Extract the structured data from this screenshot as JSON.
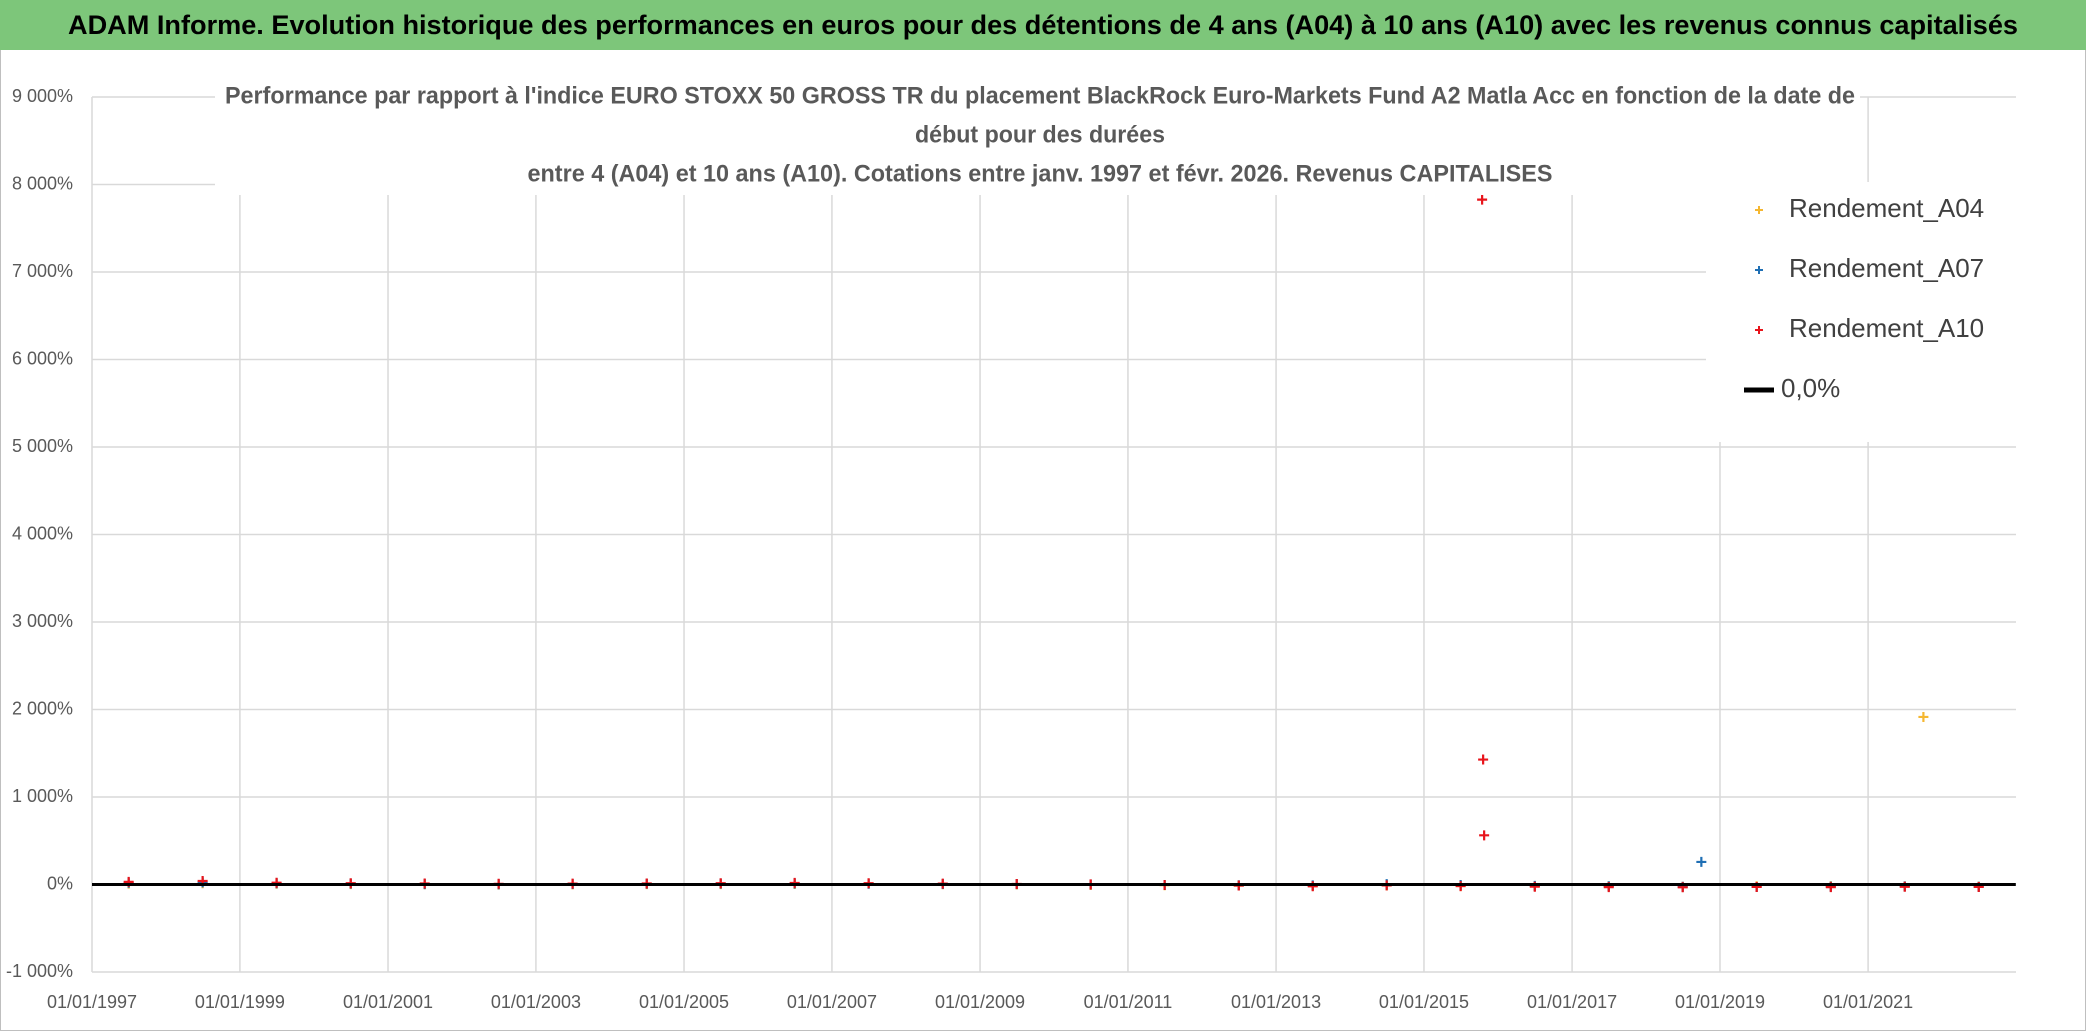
{
  "header": {
    "title": "ADAM Informe. Evolution historique des performances en euros pour des détentions de 4 ans (A04) à 10 ans (A10) avec les revenus connus capitalisés"
  },
  "chart_data": {
    "type": "scatter",
    "title": [
      "Performance par rapport à l'indice EURO STOXX 50 GROSS TR  du placement BlackRock Euro-Markets Fund A2 Matla Acc en fonction de la date de",
      "début pour des durées",
      "entre 4 (A04) et 10 ans (A10). Cotations entre janv. 1997 et févr. 2026. Revenus CAPITALISES"
    ],
    "xlim": [
      "1997-01-01",
      "2023-01-01"
    ],
    "xticks": [
      {
        "value": "1997-01-01",
        "label": "01/01/1997"
      },
      {
        "value": "1999-01-01",
        "label": "01/01/1999"
      },
      {
        "value": "2001-01-01",
        "label": "01/01/2001"
      },
      {
        "value": "2003-01-01",
        "label": "01/01/2003"
      },
      {
        "value": "2005-01-01",
        "label": "01/01/2005"
      },
      {
        "value": "2007-01-01",
        "label": "01/01/2007"
      },
      {
        "value": "2009-01-01",
        "label": "01/01/2009"
      },
      {
        "value": "2011-01-01",
        "label": "01/01/2011"
      },
      {
        "value": "2013-01-01",
        "label": "01/01/2013"
      },
      {
        "value": "2015-01-01",
        "label": "01/01/2015"
      },
      {
        "value": "2017-01-01",
        "label": "01/01/2017"
      },
      {
        "value": "2019-01-01",
        "label": "01/01/2019"
      },
      {
        "value": "2021-01-01",
        "label": "01/01/2021"
      }
    ],
    "ylim": [
      -1000,
      9000
    ],
    "yticks": [
      {
        "value": -1000,
        "label": "-1 000%"
      },
      {
        "value": 0,
        "label": "0%"
      },
      {
        "value": 1000,
        "label": "1 000%"
      },
      {
        "value": 2000,
        "label": "2 000%"
      },
      {
        "value": 3000,
        "label": "3 000%"
      },
      {
        "value": 4000,
        "label": "4 000%"
      },
      {
        "value": 5000,
        "label": "5 000%"
      },
      {
        "value": 6000,
        "label": "6 000%"
      },
      {
        "value": 7000,
        "label": "7 000%"
      },
      {
        "value": 8000,
        "label": "8 000%"
      },
      {
        "value": 9000,
        "label": "9 000%"
      }
    ],
    "grid": true,
    "legend": "upper right",
    "series": [
      {
        "name": "Rendement_A04",
        "color": "#f5b731",
        "mode": "marker",
        "x": [
          "1997-07-01",
          "1998-07-01",
          "1999-07-01",
          "2000-07-01",
          "2001-07-01",
          "2002-07-01",
          "2003-07-01",
          "2004-07-01",
          "2005-07-01",
          "2006-07-01",
          "2007-07-01",
          "2008-07-01",
          "2009-07-01",
          "2010-07-01",
          "2011-07-01",
          "2012-07-01",
          "2013-07-01",
          "2014-07-01",
          "2015-07-01",
          "2016-07-01",
          "2017-07-01",
          "2018-07-01",
          "2019-07-01",
          "2020-07-01",
          "2021-07-01",
          "2021-10-01",
          "2022-07-01"
        ],
        "values": [
          10,
          15,
          8,
          5,
          3,
          -2,
          2,
          5,
          4,
          6,
          10,
          3,
          1,
          -5,
          -8,
          -12,
          -15,
          -10,
          -18,
          -20,
          -22,
          -25,
          -20,
          -18,
          -22,
          1915,
          -24
        ]
      },
      {
        "name": "Rendement_A07",
        "color": "#1f6fb4",
        "mode": "marker",
        "x": [
          "1997-07-01",
          "1998-07-01",
          "1999-07-01",
          "2000-07-01",
          "2001-07-01",
          "2002-07-01",
          "2003-07-01",
          "2004-07-01",
          "2005-07-01",
          "2006-07-01",
          "2007-07-01",
          "2008-07-01",
          "2009-07-01",
          "2010-07-01",
          "2011-07-01",
          "2012-07-01",
          "2013-07-01",
          "2014-07-01",
          "2015-07-01",
          "2016-07-01",
          "2017-07-01",
          "2018-07-01",
          "2018-10-01",
          "2019-07-01",
          "2020-07-01",
          "2021-07-01",
          "2022-07-01"
        ],
        "values": [
          20,
          25,
          15,
          10,
          5,
          3,
          6,
          8,
          10,
          12,
          8,
          6,
          4,
          0,
          -5,
          -8,
          -10,
          5,
          -5,
          -15,
          -20,
          -25,
          258,
          -28,
          -24,
          -22,
          -26
        ]
      },
      {
        "name": "Rendement_A10",
        "color": "#e8141b",
        "mode": "marker",
        "x": [
          "1997-07-01",
          "1998-07-01",
          "1999-07-01",
          "2000-07-01",
          "2001-07-01",
          "2002-07-01",
          "2003-07-01",
          "2004-07-01",
          "2005-07-01",
          "2006-07-01",
          "2007-07-01",
          "2008-07-01",
          "2009-07-01",
          "2010-07-01",
          "2011-07-01",
          "2012-07-01",
          "2013-07-01",
          "2014-07-01",
          "2015-07-01",
          "2015-10-15",
          "2015-10-20",
          "2015-10-25",
          "2016-07-01",
          "2017-07-01",
          "2018-07-01",
          "2019-07-01",
          "2020-07-01",
          "2021-07-01",
          "2022-07-01"
        ],
        "values": [
          30,
          40,
          20,
          15,
          12,
          8,
          10,
          12,
          15,
          18,
          14,
          10,
          6,
          2,
          -5,
          -12,
          -20,
          -10,
          -18,
          7827,
          1428,
          562,
          -25,
          -30,
          -32,
          -28,
          -30,
          -26,
          -28
        ]
      },
      {
        "name": "0,0%",
        "color": "#000000",
        "mode": "line",
        "x": [
          "1997-01-01",
          "2022-12-31"
        ],
        "values": [
          0,
          0
        ]
      }
    ]
  }
}
